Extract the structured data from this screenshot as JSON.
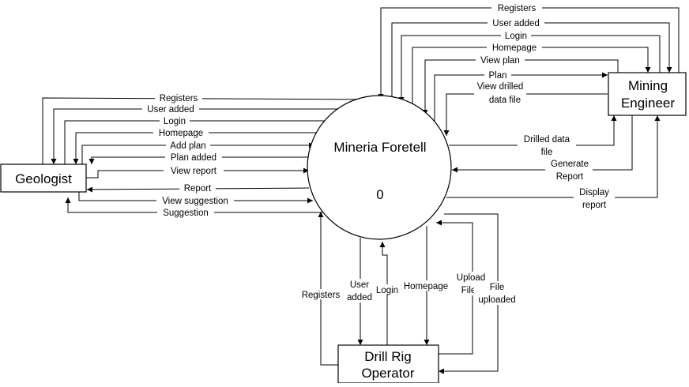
{
  "process": {
    "name": "Mineria Foretell",
    "number": "0"
  },
  "entities": {
    "geologist": "Geologist",
    "mining_engineer": [
      "Mining",
      "Engineer"
    ],
    "drill_rig_operator": [
      "Drill Rig",
      "Operator"
    ]
  },
  "flows": {
    "mining_engineer": {
      "registers": "Registers",
      "user_added": "User added",
      "login": "Login",
      "homepage": "Homepage",
      "view_plan": "View plan",
      "plan": "Plan",
      "view_drilled": [
        "View drilled",
        "data file"
      ],
      "drilled_data": [
        "Drilled data",
        "file"
      ],
      "generate_report": [
        "Generate",
        "Report"
      ],
      "display_report": [
        "Display",
        "report"
      ]
    },
    "geologist": {
      "registers": "Registers",
      "user_added": "User added",
      "login": "Login",
      "homepage": "Homepage",
      "add_plan": "Add plan",
      "plan_added": "Plan added",
      "view_report": "View report",
      "report": "Report",
      "view_suggestion": "View suggestion",
      "suggestion": "Suggestion"
    },
    "drill_rig_operator": {
      "registers": "Registers",
      "user_added": [
        "User",
        "added"
      ],
      "login": "Login",
      "homepage": "Homepage",
      "upload_file": [
        "Upload",
        "File"
      ],
      "file_uploaded": [
        "File",
        "uploaded"
      ]
    }
  }
}
